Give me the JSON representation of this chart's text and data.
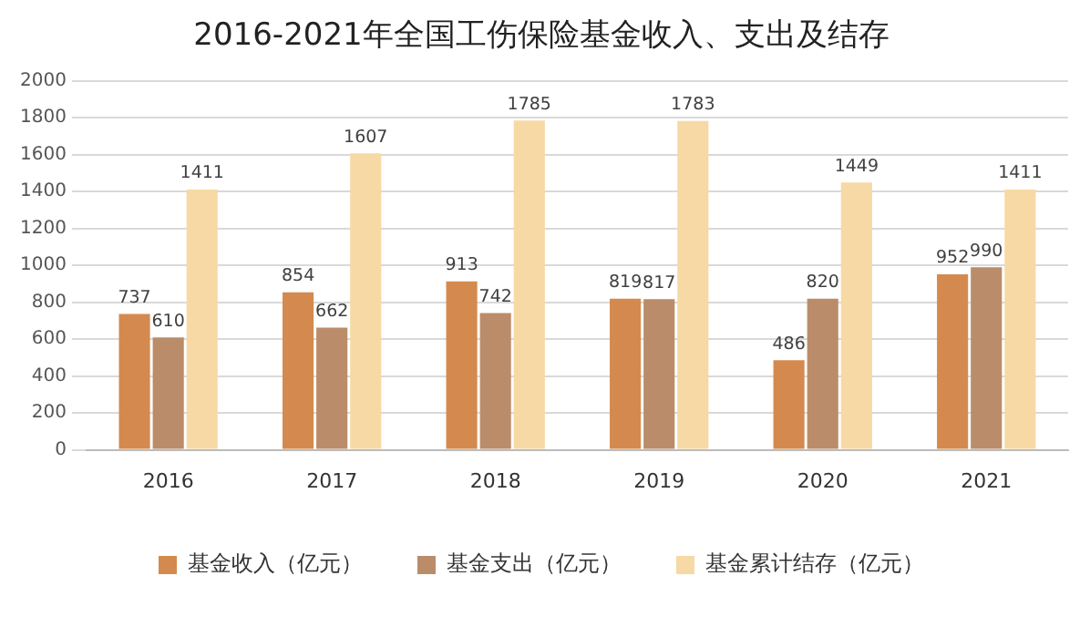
{
  "chart_data": {
    "type": "bar",
    "title": "2016-2021年全国工伤保险基金收入、支出及结存",
    "categories": [
      "2016",
      "2017",
      "2018",
      "2019",
      "2020",
      "2021"
    ],
    "series": [
      {
        "name": "基金收入（亿元）",
        "color": "#d48a4e",
        "values": [
          737,
          854,
          913,
          819,
          486,
          952
        ]
      },
      {
        "name": "基金支出（亿元）",
        "color": "#bb8c69",
        "values": [
          610,
          662,
          742,
          817,
          820,
          990
        ]
      },
      {
        "name": "基金累计结存（亿元）",
        "color": "#f7d9a5",
        "values": [
          1411,
          1607,
          1785,
          1783,
          1449,
          1411
        ]
      }
    ],
    "ylim": [
      0,
      2000
    ],
    "yticks": [
      0,
      200,
      400,
      600,
      800,
      1000,
      1200,
      1400,
      1600,
      1800,
      2000
    ],
    "grid": "y",
    "legend": "bottom",
    "data_labels": true
  }
}
